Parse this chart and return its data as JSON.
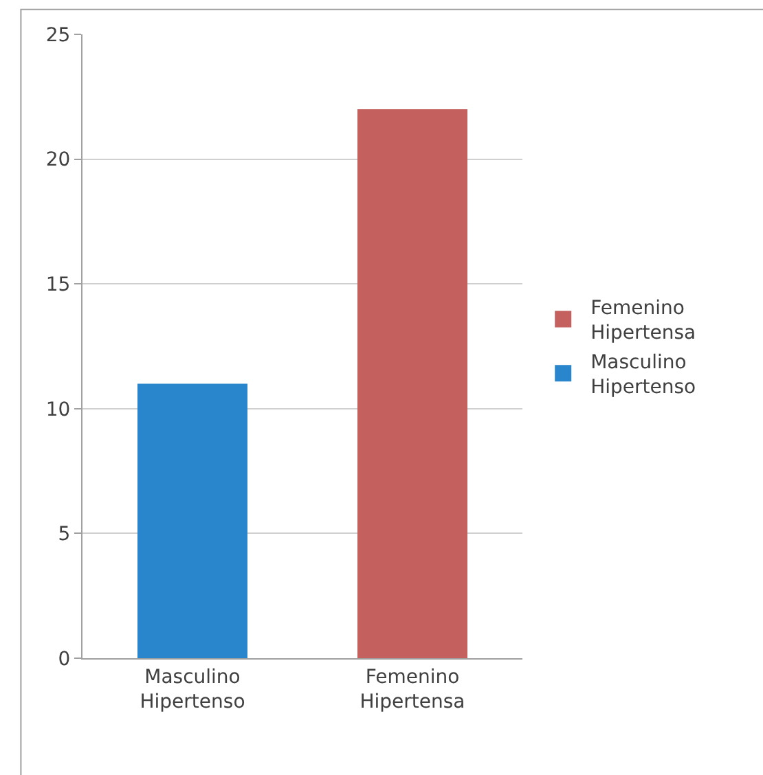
{
  "chart_data": {
    "type": "bar",
    "categories": [
      "Masculino Hipertenso",
      "Femenino Hipertensa"
    ],
    "series": [
      {
        "name": "Femenino Hipertensa",
        "color": "#c4615e",
        "values": [
          null,
          22
        ]
      },
      {
        "name": "Masculino Hipertenso",
        "color": "#2a86cc",
        "values": [
          11,
          null
        ]
      }
    ],
    "ylim": [
      0,
      25
    ],
    "yticks": [
      0,
      5,
      10,
      15,
      20,
      25
    ],
    "grid": "y",
    "legend": "right"
  }
}
